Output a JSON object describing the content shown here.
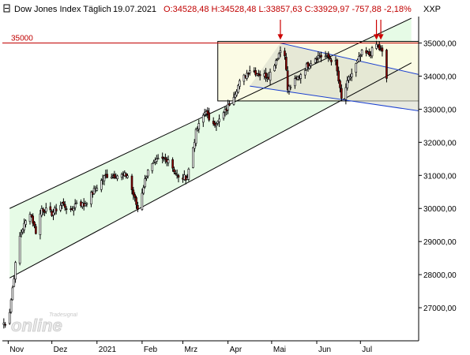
{
  "header": {
    "symbol_label": "Dow Jones Index Täglich",
    "date": "19.07.2021",
    "ohlc": "O:34528,48 H:34528,48 L:33857,63 C:33929,97 -757,88 -2,18%",
    "exchange": "XXP"
  },
  "reference_line": {
    "label": "35000",
    "value": 35000,
    "color": "#c00000"
  },
  "watermark": {
    "brand": "Tradesignal",
    "text": "online"
  },
  "colors": {
    "candle_up": "#ffffff",
    "candle_down": "#8b0000",
    "wick": "#000000",
    "channel_fill": "#e6fbe6",
    "box_fill": "#fafae0",
    "triangle_fill": "#d8dccc",
    "blue_line": "#1a3fd0",
    "arrow": "#cc0000"
  },
  "chart_data": {
    "type": "candlestick",
    "title": "Dow Jones Index Täglich",
    "xlabel": "",
    "ylabel": "",
    "ylim": [
      26000,
      35800
    ],
    "y_ticks": [
      "27000,00",
      "28000,00",
      "29000,00",
      "30000,00",
      "31000,00",
      "32000,00",
      "33000,00",
      "34000,00",
      "35000,00"
    ],
    "y_tick_values": [
      27000,
      28000,
      29000,
      30000,
      31000,
      32000,
      33000,
      34000,
      35000
    ],
    "x_ticks": [
      "Nov",
      "Dez",
      "2021",
      "Feb",
      "Mrz",
      "Apr",
      "Mai",
      "Jun",
      "Jul"
    ],
    "x_range": [
      "2020-10-28",
      "2021-08-10"
    ],
    "x_tick_dates": [
      "2020-11-01",
      "2020-12-01",
      "2021-01-01",
      "2021-02-01",
      "2021-03-01",
      "2021-04-01",
      "2021-05-01",
      "2021-06-01",
      "2021-07-01"
    ],
    "anchors": [
      [
        "2020-10-28",
        26500
      ],
      [
        "2020-10-30",
        26550
      ],
      [
        "2020-11-02",
        26900
      ],
      [
        "2020-11-04",
        27600
      ],
      [
        "2020-11-06",
        28300
      ],
      [
        "2020-11-09",
        29150
      ],
      [
        "2020-11-11",
        29400
      ],
      [
        "2020-11-16",
        29900
      ],
      [
        "2020-11-20",
        29300
      ],
      [
        "2020-11-24",
        30000
      ],
      [
        "2020-12-01",
        29850
      ],
      [
        "2020-12-08",
        30150
      ],
      [
        "2020-12-14",
        29900
      ],
      [
        "2020-12-18",
        30200
      ],
      [
        "2020-12-23",
        30100
      ],
      [
        "2020-12-31",
        30600
      ],
      [
        "2021-01-07",
        31000
      ],
      [
        "2021-01-14",
        31000
      ],
      [
        "2021-01-22",
        31000
      ],
      [
        "2021-01-29",
        29980
      ],
      [
        "2021-02-05",
        31200
      ],
      [
        "2021-02-12",
        31450
      ],
      [
        "2021-02-19",
        31500
      ],
      [
        "2021-02-26",
        30900
      ],
      [
        "2021-03-04",
        30950
      ],
      [
        "2021-03-10",
        32300
      ],
      [
        "2021-03-17",
        33000
      ],
      [
        "2021-03-19",
        32600
      ],
      [
        "2021-03-25",
        32600
      ],
      [
        "2021-03-31",
        33000
      ],
      [
        "2021-04-09",
        33800
      ],
      [
        "2021-04-16",
        34200
      ],
      [
        "2021-04-23",
        34050
      ],
      [
        "2021-04-29",
        34000
      ],
      [
        "2021-05-07",
        34780
      ],
      [
        "2021-05-10",
        34700
      ],
      [
        "2021-05-12",
        33600
      ],
      [
        "2021-05-18",
        33900
      ],
      [
        "2021-05-25",
        34300
      ],
      [
        "2021-06-01",
        34600
      ],
      [
        "2021-06-08",
        34600
      ],
      [
        "2021-06-14",
        34400
      ],
      [
        "2021-06-18",
        33300
      ],
      [
        "2021-06-23",
        33900
      ],
      [
        "2021-07-02",
        34700
      ],
      [
        "2021-07-07",
        34650
      ],
      [
        "2021-07-12",
        34950
      ],
      [
        "2021-07-16",
        34700
      ],
      [
        "2021-07-19",
        33930
      ]
    ],
    "trendlines": [
      {
        "name": "channel-upper",
        "from": [
          "2020-11-02",
          30000
        ],
        "to": [
          "2021-08-05",
          35750
        ]
      },
      {
        "name": "channel-lower",
        "from": [
          "2020-11-02",
          27900
        ],
        "to": [
          "2021-08-05",
          34400
        ]
      },
      {
        "name": "blue-upper",
        "from": [
          "2021-05-07",
          35000
        ],
        "to": [
          "2021-08-10",
          34050
        ]
      },
      {
        "name": "blue-lower",
        "from": [
          "2021-04-16",
          33700
        ],
        "to": [
          "2021-08-10",
          32950
        ]
      }
    ],
    "box": {
      "from": "2021-03-25",
      "to": "2021-08-10",
      "high": 35050,
      "low": 33250
    },
    "arrows": [
      {
        "date": "2021-05-07",
        "price": 35100
      },
      {
        "date": "2021-07-12",
        "price": 35100
      },
      {
        "date": "2021-07-15",
        "price": 35100
      }
    ],
    "grid": false,
    "legend": "none"
  }
}
